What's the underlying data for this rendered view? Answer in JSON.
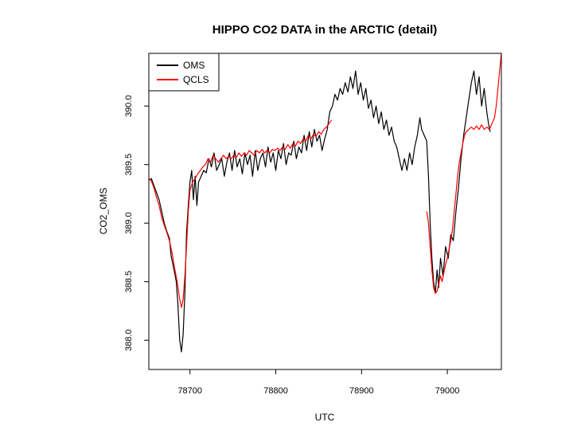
{
  "chart_data": {
    "type": "line",
    "title": "HIPPO CO2 DATA in the ARCTIC (detail)",
    "xlabel": "UTC",
    "ylabel": "CO2_OMS",
    "xlim": [
      78652,
      79063
    ],
    "ylim": [
      387.75,
      390.45
    ],
    "x_ticks": [
      78700,
      78800,
      78900,
      79000
    ],
    "x_tick_labels": [
      "78700",
      "78800",
      "78900",
      "79000"
    ],
    "y_ticks": [
      388.0,
      388.5,
      389.0,
      389.5,
      390.0
    ],
    "y_tick_labels": [
      "388.0",
      "388.5",
      "389.0",
      "389.5",
      "390.0"
    ],
    "legend_position": "top-left",
    "series": [
      {
        "name": "OMS",
        "color": "#000000",
        "segments": [
          [
            [
              78652,
              389.37
            ],
            [
              78655,
              389.38
            ],
            [
              78658,
              389.32
            ],
            [
              78661,
              389.26
            ],
            [
              78664,
              389.2
            ],
            [
              78667,
              389.1
            ],
            [
              78670,
              389.0
            ],
            [
              78673,
              388.93
            ],
            [
              78676,
              388.87
            ],
            [
              78678,
              388.72
            ],
            [
              78680,
              388.65
            ],
            [
              78682,
              388.58
            ],
            [
              78684,
              388.5
            ],
            [
              78686,
              388.3
            ],
            [
              78688,
              388.0
            ],
            [
              78690,
              387.9
            ],
            [
              78692,
              388.05
            ],
            [
              78694,
              388.4
            ],
            [
              78696,
              388.92
            ],
            [
              78698,
              389.15
            ],
            [
              78700,
              389.35
            ],
            [
              78702,
              389.45
            ],
            [
              78704,
              389.2
            ],
            [
              78706,
              389.4
            ],
            [
              78708,
              389.15
            ],
            [
              78710,
              389.35
            ],
            [
              78713,
              389.4
            ],
            [
              78716,
              389.45
            ],
            [
              78719,
              389.43
            ],
            [
              78722,
              389.55
            ],
            [
              78725,
              389.48
            ],
            [
              78728,
              389.6
            ],
            [
              78731,
              389.45
            ],
            [
              78734,
              389.5
            ],
            [
              78737,
              389.55
            ],
            [
              78740,
              389.4
            ],
            [
              78743,
              389.52
            ],
            [
              78746,
              389.6
            ],
            [
              78749,
              389.45
            ],
            [
              78752,
              389.62
            ],
            [
              78755,
              389.48
            ],
            [
              78758,
              389.55
            ],
            [
              78761,
              389.42
            ],
            [
              78764,
              389.6
            ],
            [
              78767,
              389.5
            ],
            [
              78770,
              389.58
            ],
            [
              78773,
              389.4
            ],
            [
              78776,
              389.62
            ],
            [
              78779,
              389.45
            ],
            [
              78782,
              389.55
            ],
            [
              78785,
              389.6
            ],
            [
              78788,
              389.48
            ],
            [
              78791,
              389.65
            ],
            [
              78794,
              389.52
            ],
            [
              78797,
              389.6
            ],
            [
              78800,
              389.45
            ],
            [
              78803,
              389.62
            ],
            [
              78806,
              389.55
            ],
            [
              78809,
              389.68
            ],
            [
              78812,
              389.5
            ],
            [
              78815,
              389.6
            ],
            [
              78818,
              389.58
            ],
            [
              78821,
              389.7
            ],
            [
              78824,
              389.55
            ],
            [
              78827,
              389.65
            ],
            [
              78830,
              389.6
            ],
            [
              78833,
              389.75
            ],
            [
              78836,
              389.62
            ],
            [
              78839,
              389.78
            ],
            [
              78842,
              389.65
            ],
            [
              78845,
              389.8
            ],
            [
              78848,
              389.7
            ],
            [
              78851,
              389.75
            ],
            [
              78854,
              389.62
            ],
            [
              78857,
              389.72
            ],
            [
              78860,
              389.8
            ],
            [
              78863,
              389.95
            ],
            [
              78866,
              390.0
            ],
            [
              78869,
              390.1
            ],
            [
              78872,
              390.05
            ],
            [
              78875,
              390.15
            ],
            [
              78878,
              390.1
            ],
            [
              78881,
              390.2
            ],
            [
              78884,
              390.12
            ],
            [
              78887,
              390.25
            ],
            [
              78890,
              390.15
            ],
            [
              78893,
              390.3
            ],
            [
              78896,
              390.1
            ],
            [
              78899,
              390.2
            ],
            [
              78902,
              390.05
            ],
            [
              78905,
              390.15
            ],
            [
              78908,
              389.98
            ],
            [
              78911,
              390.05
            ],
            [
              78914,
              389.9
            ],
            [
              78917,
              390.0
            ],
            [
              78920,
              389.85
            ],
            [
              78923,
              389.95
            ],
            [
              78926,
              389.8
            ],
            [
              78929,
              389.88
            ],
            [
              78932,
              389.75
            ],
            [
              78935,
              389.82
            ],
            [
              78938,
              389.7
            ],
            [
              78941,
              389.65
            ],
            [
              78944,
              389.55
            ],
            [
              78947,
              389.45
            ],
            [
              78950,
              389.55
            ],
            [
              78953,
              389.45
            ],
            [
              78956,
              389.6
            ],
            [
              78959,
              389.5
            ],
            [
              78962,
              389.65
            ],
            [
              78965,
              389.75
            ],
            [
              78968,
              389.9
            ],
            [
              78970,
              389.8
            ],
            [
              78973,
              389.75
            ],
            [
              78976,
              389.7
            ],
            [
              78978,
              389.4
            ],
            [
              78980,
              389.0
            ],
            [
              78982,
              388.7
            ],
            [
              78984,
              388.5
            ],
            [
              78986,
              388.4
            ],
            [
              78988,
              388.6
            ],
            [
              78990,
              388.45
            ],
            [
              78992,
              388.7
            ],
            [
              78995,
              388.55
            ],
            [
              78998,
              388.8
            ],
            [
              79001,
              388.7
            ],
            [
              79004,
              388.9
            ],
            [
              79007,
              388.85
            ],
            [
              79010,
              389.1
            ],
            [
              79013,
              389.3
            ],
            [
              79016,
              389.55
            ],
            [
              79019,
              389.75
            ],
            [
              79022,
              389.9
            ],
            [
              79025,
              390.05
            ],
            [
              79028,
              390.2
            ],
            [
              79031,
              390.3
            ],
            [
              79034,
              390.1
            ],
            [
              79037,
              390.25
            ],
            [
              79040,
              390.0
            ],
            [
              79043,
              390.15
            ],
            [
              79046,
              389.95
            ],
            [
              79048,
              389.85
            ],
            [
              79050,
              389.78
            ]
          ]
        ]
      },
      {
        "name": "QCLS",
        "color": "#ff0000",
        "segments": [
          [
            [
              78652,
              389.38
            ],
            [
              78655,
              389.36
            ],
            [
              78658,
              389.3
            ],
            [
              78661,
              389.22
            ],
            [
              78664,
              389.15
            ],
            [
              78667,
              389.05
            ],
            [
              78670,
              388.98
            ],
            [
              78673,
              388.92
            ],
            [
              78676,
              388.85
            ],
            [
              78679,
              388.75
            ],
            [
              78682,
              388.62
            ],
            [
              78685,
              388.5
            ],
            [
              78688,
              388.35
            ],
            [
              78690,
              388.28
            ],
            [
              78692,
              388.35
            ],
            [
              78694,
              388.55
            ],
            [
              78696,
              388.8
            ],
            [
              78698,
              389.1
            ],
            [
              78700,
              389.28
            ],
            [
              78703,
              389.35
            ],
            [
              78706,
              389.38
            ],
            [
              78709,
              389.42
            ],
            [
              78712,
              389.45
            ],
            [
              78715,
              389.48
            ],
            [
              78718,
              389.5
            ],
            [
              78721,
              389.55
            ],
            [
              78724,
              389.52
            ],
            [
              78727,
              389.58
            ],
            [
              78730,
              389.55
            ],
            [
              78733,
              389.52
            ],
            [
              78736,
              389.55
            ],
            [
              78739,
              389.58
            ],
            [
              78742,
              389.55
            ],
            [
              78745,
              389.57
            ],
            [
              78748,
              389.55
            ],
            [
              78751,
              389.58
            ],
            [
              78754,
              389.56
            ],
            [
              78757,
              389.6
            ],
            [
              78760,
              389.57
            ],
            [
              78763,
              389.6
            ],
            [
              78766,
              389.58
            ],
            [
              78769,
              389.62
            ],
            [
              78772,
              389.6
            ],
            [
              78775,
              389.58
            ],
            [
              78778,
              389.62
            ],
            [
              78781,
              389.6
            ],
            [
              78784,
              389.63
            ],
            [
              78787,
              389.6
            ],
            [
              78790,
              389.62
            ],
            [
              78793,
              389.6
            ],
            [
              78796,
              389.63
            ],
            [
              78799,
              389.62
            ],
            [
              78802,
              389.64
            ],
            [
              78805,
              389.62
            ],
            [
              78808,
              389.65
            ],
            [
              78811,
              389.63
            ],
            [
              78814,
              389.67
            ],
            [
              78817,
              389.64
            ],
            [
              78820,
              389.68
            ],
            [
              78823,
              389.66
            ],
            [
              78826,
              389.7
            ],
            [
              78829,
              389.68
            ],
            [
              78832,
              389.72
            ],
            [
              78835,
              389.7
            ],
            [
              78838,
              389.75
            ],
            [
              78841,
              389.72
            ],
            [
              78844,
              389.76
            ],
            [
              78847,
              389.74
            ],
            [
              78850,
              389.78
            ],
            [
              78853,
              389.76
            ],
            [
              78856,
              389.8
            ],
            [
              78859,
              389.82
            ],
            [
              78862,
              389.85
            ],
            [
              78865,
              389.88
            ]
          ],
          [
            [
              78976,
              389.1
            ],
            [
              78978,
              389.0
            ],
            [
              78980,
              388.8
            ],
            [
              78982,
              388.6
            ],
            [
              78984,
              388.45
            ],
            [
              78986,
              388.4
            ],
            [
              78988,
              388.42
            ],
            [
              78990,
              388.48
            ],
            [
              78992,
              388.55
            ],
            [
              78994,
              388.5
            ],
            [
              78996,
              388.58
            ],
            [
              78998,
              388.65
            ],
            [
              79000,
              388.7
            ],
            [
              79002,
              388.78
            ],
            [
              79004,
              388.85
            ],
            [
              79006,
              388.95
            ],
            [
              79008,
              389.1
            ],
            [
              79010,
              389.25
            ],
            [
              79012,
              389.4
            ],
            [
              79014,
              389.52
            ],
            [
              79016,
              389.6
            ],
            [
              79018,
              389.68
            ],
            [
              79020,
              389.75
            ],
            [
              79022,
              389.78
            ],
            [
              79025,
              389.8
            ],
            [
              79028,
              389.82
            ],
            [
              79031,
              389.8
            ],
            [
              79034,
              389.83
            ],
            [
              79037,
              389.8
            ],
            [
              79040,
              389.84
            ],
            [
              79043,
              389.8
            ],
            [
              79046,
              389.82
            ],
            [
              79049,
              389.8
            ],
            [
              79052,
              389.85
            ],
            [
              79055,
              389.9
            ],
            [
              79057,
              390.0
            ],
            [
              79059,
              390.15
            ],
            [
              79061,
              390.3
            ],
            [
              79063,
              390.45
            ]
          ]
        ]
      }
    ]
  }
}
